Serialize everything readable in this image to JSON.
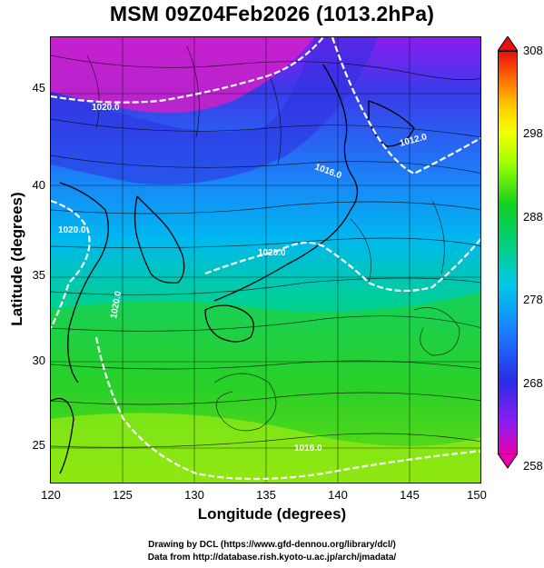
{
  "title": "MSM 09Z04Feb2026 (1013.2hPa)",
  "axes": {
    "xlabel": "Longitude (degrees)",
    "ylabel": "Latitude  (degrees)",
    "xticks": [
      "120",
      "125",
      "130",
      "135",
      "140",
      "145",
      "150"
    ],
    "yticks": [
      "45",
      "40",
      "35",
      "30",
      "25"
    ]
  },
  "colorbar": {
    "ticks": [
      "308",
      "298",
      "288",
      "278",
      "268",
      "258"
    ],
    "top_color": "#e81010",
    "bottom_color": "#e600ae"
  },
  "contour_labels": [
    "1020.0",
    "1020.0",
    "1012.0",
    "1016.0",
    "1020.0",
    "1020.0",
    "1016.0"
  ],
  "footer": {
    "line1": "Drawing by DCL (https://www.gfd-dennou.org/library/dcl/)",
    "line2": "Data from http://database.rish.kyoto-u.ac.jp/arch/jmadata/"
  }
}
